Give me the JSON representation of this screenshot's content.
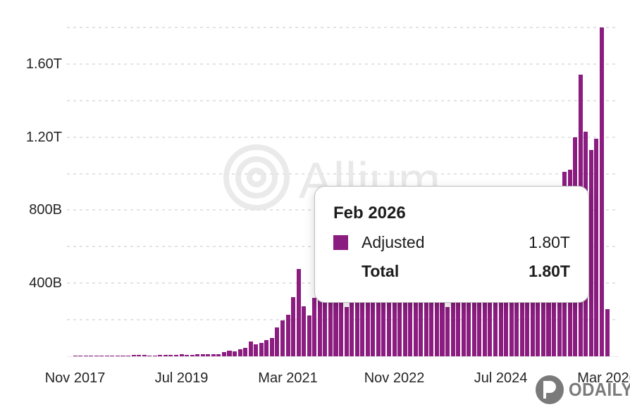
{
  "chart_data": {
    "type": "bar",
    "title": "",
    "series_name": "Adjusted",
    "value_unit": "USD (B = billions, T = trillions)",
    "months_start": "Nov 2017",
    "months_end": "Mar 2026",
    "values_billions": [
      2,
      3,
      4,
      3,
      3,
      3,
      4,
      4,
      4,
      5,
      5,
      6,
      6,
      7,
      5,
      5,
      6,
      7,
      8,
      9,
      10,
      9,
      9,
      10,
      12,
      12,
      11,
      12,
      25,
      30,
      28,
      39,
      48,
      81,
      66,
      73,
      89,
      100,
      158,
      197,
      228,
      324,
      479,
      274,
      224,
      320,
      360,
      420,
      450,
      400,
      340,
      270,
      380,
      420,
      520,
      480,
      400,
      380,
      390,
      410,
      520,
      380,
      360,
      400,
      480,
      420,
      380,
      360,
      340,
      320,
      270,
      340,
      380,
      420,
      450,
      480,
      560,
      540,
      520,
      500,
      520,
      540,
      520,
      580,
      640,
      700,
      720,
      680,
      700,
      720,
      760,
      850,
      1010,
      1020,
      1200,
      1540,
      1230,
      1130,
      1190,
      1800,
      260
    ],
    "x_ticks": [
      {
        "label": "Nov 2017",
        "month_index": 0
      },
      {
        "label": "Jul 2019",
        "month_index": 20
      },
      {
        "label": "Mar 2021",
        "month_index": 40
      },
      {
        "label": "Nov 2022",
        "month_index": 60
      },
      {
        "label": "Jul 2024",
        "month_index": 80
      },
      {
        "label": "Mar 2026",
        "month_index": 100
      }
    ],
    "y_ticks": [
      {
        "label": "1.60T",
        "billions": 1600
      },
      {
        "label": "1.20T",
        "billions": 1200
      },
      {
        "label": "800B",
        "billions": 800
      },
      {
        "label": "400B",
        "billions": 400
      }
    ],
    "y_gridlines_billions": [
      1800,
      1600,
      1400,
      1200,
      1000,
      800,
      600,
      400,
      200
    ],
    "ylim_billions": [
      0,
      1800
    ],
    "grid": true,
    "legend_position": "none",
    "bar_color": "#8B1C80"
  },
  "tooltip": {
    "title": "Feb 2026",
    "rows": [
      {
        "swatch_color": "#8B1C80",
        "label": "Adjusted",
        "value": "1.80T",
        "bold": false
      },
      {
        "swatch_color": null,
        "label": "Total",
        "value": "1.80T",
        "bold": true
      }
    ]
  },
  "watermark": {
    "text": "Allium"
  },
  "brand": {
    "text": "ODAILY"
  },
  "colors": {
    "bar": "#8B1C80",
    "gridline": "#e3e3e3",
    "axis_text": "#242424",
    "watermark": "#e9e9e9",
    "tooltip_border": "#bdbdbd",
    "brand_gray": "#6f6f6f",
    "background": "#ffffff"
  }
}
